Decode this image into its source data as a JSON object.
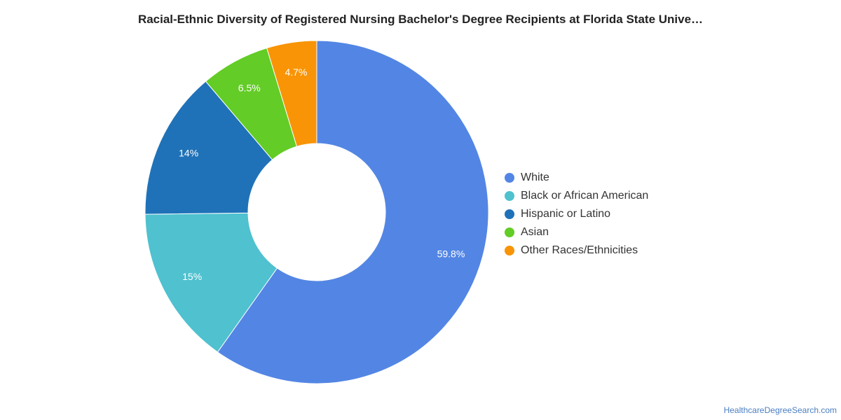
{
  "title": "Racial-Ethnic Diversity of Registered Nursing Bachelor's Degree Recipients at Florida State Unive…",
  "source": "HealthcareDegreeSearch.com",
  "chart_data": {
    "type": "pie",
    "title": "Racial-Ethnic Diversity of Registered Nursing Bachelor's Degree Recipients at Florida State Unive…",
    "donut": true,
    "legend_position": "right",
    "slices": [
      {
        "name": "White",
        "value": 59.8,
        "label": "59.8%",
        "color": "#5386e4"
      },
      {
        "name": "Black or African American",
        "value": 15.0,
        "label": "15%",
        "color": "#4fc1cf"
      },
      {
        "name": "Hispanic or Latino",
        "value": 14.0,
        "label": "14%",
        "color": "#1f72b8"
      },
      {
        "name": "Asian",
        "value": 6.5,
        "label": "6.5%",
        "color": "#63cc26"
      },
      {
        "name": "Other Races/Ethnicities",
        "value": 4.7,
        "label": "4.7%",
        "color": "#f89406"
      }
    ]
  }
}
